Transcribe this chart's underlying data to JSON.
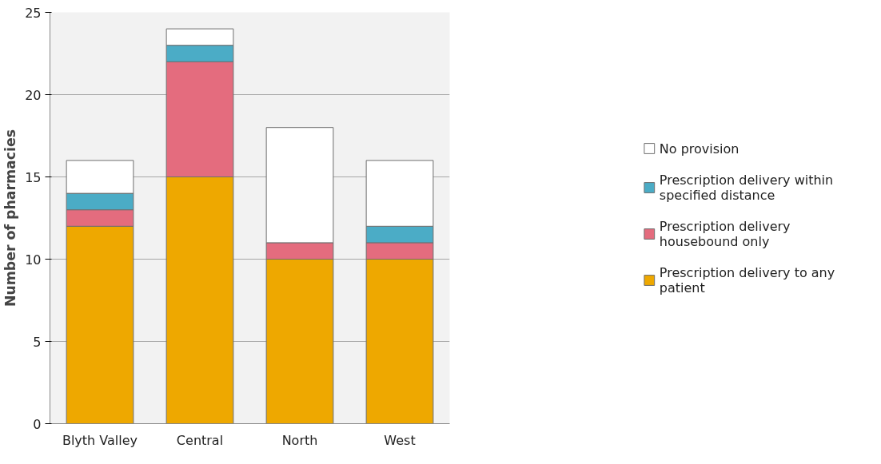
{
  "chart_data": {
    "type": "bar",
    "stacked": true,
    "ylabel": "Number of pharmacies",
    "categories": [
      "Blyth Valley",
      "Central",
      "North",
      "West"
    ],
    "series": [
      {
        "name": "Prescription delivery to any patient",
        "color": "#eea800",
        "values": [
          12,
          15,
          10,
          10
        ]
      },
      {
        "name": "Prescription delivery housebound only",
        "color": "#e46c7e",
        "values": [
          1,
          7,
          1,
          1
        ]
      },
      {
        "name": "Prescription delivery within specified distance",
        "color": "#4bacc6",
        "values": [
          1,
          1,
          0,
          1
        ]
      },
      {
        "name": "No provision",
        "color": "#ffffff",
        "values": [
          2,
          1,
          7,
          4
        ]
      }
    ],
    "ylim": [
      0,
      25
    ],
    "yticks": [
      0,
      5,
      10,
      15,
      20,
      25
    ],
    "grid": "y",
    "legend": "right"
  }
}
